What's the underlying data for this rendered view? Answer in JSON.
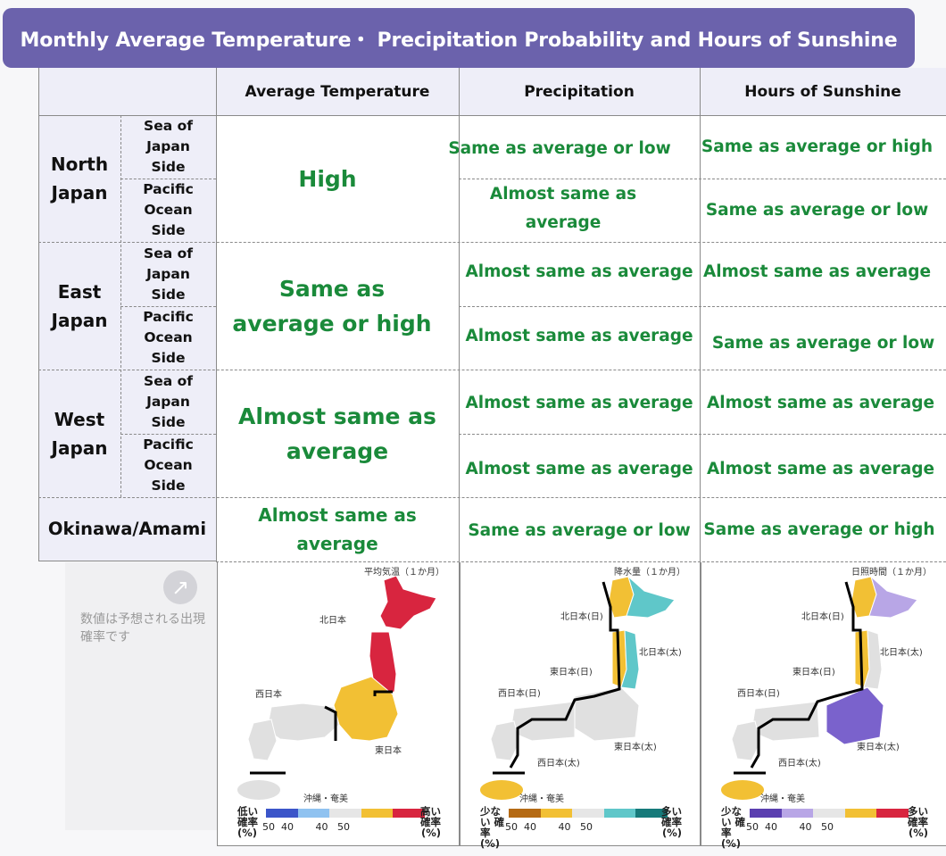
{
  "title": "Monthly Average Temperature・ Precipitation Probability and Hours of Sunshine",
  "headers": {
    "temperature": "Average Temperature",
    "precipitation": "Precipitation",
    "sunshine": "Hours of Sunshine"
  },
  "regions": {
    "north": "North Japan",
    "east": "East Japan",
    "west": "West Japan",
    "okinawa": "Okinawa/Amami"
  },
  "sides": {
    "sea": "Sea of Japan Side",
    "pacific": "Pacific Ocean Side"
  },
  "temperature": {
    "north": "High",
    "east": "Same as average or high",
    "west": "Almost same as average",
    "okinawa": "Almost same as average"
  },
  "precipitation": {
    "north_sea": "Same as average or low",
    "north_pacific": "Almost same as average",
    "east_sea": "Almost same as average",
    "east_pacific": "Almost same as average",
    "west_sea": "Almost same as average",
    "west_pacific": "Almost same as average",
    "okinawa": "Same as average or low"
  },
  "sunshine": {
    "north_sea": "Same as average or high",
    "north_pacific": "Same as average or low",
    "east_sea": "Almost same as average",
    "east_pacific": "Same as average or low",
    "west_sea": "Almost same as average",
    "west_pacific": "Almost same as average",
    "okinawa": "Same as average or high"
  },
  "note": "数値は予想される出現確率です",
  "maps": {
    "temperature": {
      "title": "平均気温（１か月）",
      "labels": [
        "北日本",
        "西日本",
        "東日本",
        "沖縄・奄美"
      ],
      "legend_low": "低い 確率 (%)",
      "legend_high": "高い 確率 (%)",
      "legend_nums": "50  40       40   50",
      "colors": [
        "#3b55c9",
        "#8fc2f0",
        "#e6e6e6",
        "#f2c034",
        "#d8253f"
      ]
    },
    "precipitation": {
      "title": "降水量（１か月）",
      "labels": [
        "北日本(日)",
        "北日本(太)",
        "東日本(日)",
        "西日本(日)",
        "東日本(太)",
        "西日本(太)",
        "沖縄・奄美"
      ],
      "legend_low": "少ない 確率 (%)",
      "legend_high": "多い 確率 (%)",
      "legend_nums": "50  40       40   50",
      "colors": [
        "#b56a14",
        "#f2c034",
        "#e6e6e6",
        "#5fc7c9",
        "#167a7a"
      ]
    },
    "sunshine": {
      "title": "日照時間（１か月）",
      "labels": [
        "北日本(日)",
        "北日本(太)",
        "東日本(日)",
        "西日本(日)",
        "東日本(太)",
        "西日本(太)",
        "沖縄・奄美"
      ],
      "legend_low": "少ない 確率 (%)",
      "legend_high": "多い 確率 (%)",
      "legend_nums": "50  40       40   50",
      "colors": [
        "#5b3fb0",
        "#b8a6e6",
        "#e6e6e6",
        "#f2c034",
        "#d8253f"
      ]
    }
  }
}
